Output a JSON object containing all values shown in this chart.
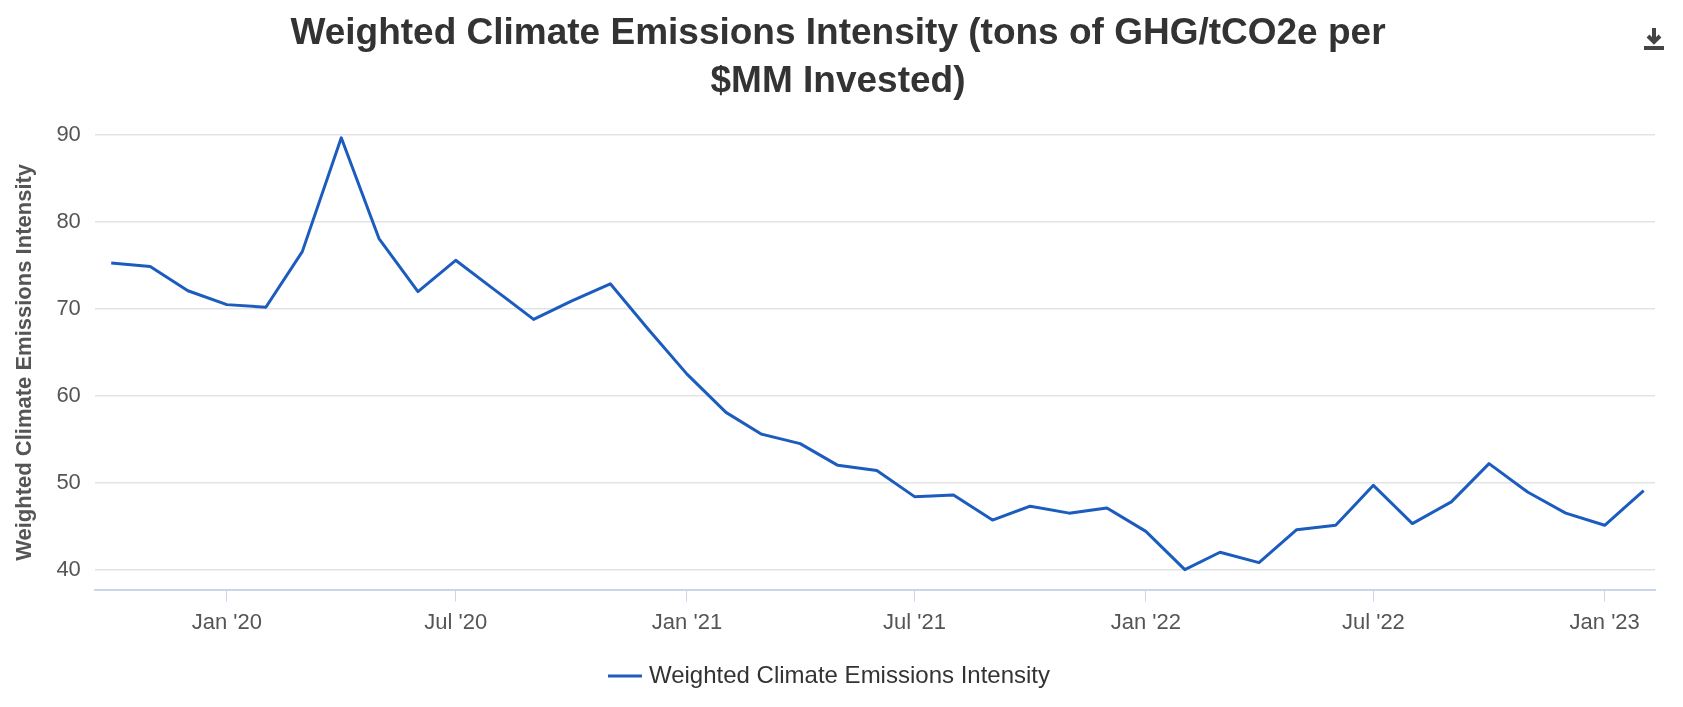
{
  "chart_data": {
    "type": "line",
    "title": "Weighted Climate Emissions Intensity (tons of GHG/tCO2e per $MM Invested)",
    "ylabel": "Weighted Climate Emissions Intensity",
    "x": [
      "2019-10",
      "2019-11",
      "2019-12",
      "2020-01",
      "2020-02",
      "2020-03",
      "2020-04",
      "2020-05",
      "2020-06",
      "2020-07",
      "2020-08",
      "2020-09",
      "2020-10",
      "2020-11",
      "2020-12",
      "2021-01",
      "2021-02",
      "2021-03",
      "2021-04",
      "2021-05",
      "2021-06",
      "2021-07",
      "2021-08",
      "2021-09",
      "2021-10",
      "2021-11",
      "2021-12",
      "2022-01",
      "2022-02",
      "2022-03",
      "2022-04",
      "2022-05",
      "2022-06",
      "2022-07",
      "2022-08",
      "2022-09",
      "2022-10",
      "2022-11",
      "2022-12",
      "2023-01",
      "2023-02"
    ],
    "series": [
      {
        "name": "Weighted Climate Emissions Intensity",
        "color": "#1c5cbf",
        "values": [
          75.3,
          74.9,
          72.1,
          70.5,
          70.2,
          76.6,
          89.7,
          78.1,
          72,
          75.6,
          72.2,
          68.8,
          70.9,
          72.9,
          67.7,
          62.5,
          58.1,
          55.6,
          54.5,
          52,
          51.4,
          48.4,
          48.6,
          45.7,
          47.3,
          46.5,
          47.1,
          44.4,
          40,
          42,
          40.8,
          44.6,
          45.1,
          49.7,
          45.3,
          47.8,
          52.2,
          48.9,
          46.5,
          45.1,
          49.1
        ]
      }
    ],
    "xlim": [
      "2019-09-18",
      "2023-02-10"
    ],
    "xticks": [
      {
        "value": "2020-01",
        "label": "Jan '20"
      },
      {
        "value": "2020-07",
        "label": "Jul '20"
      },
      {
        "value": "2021-01",
        "label": "Jan '21"
      },
      {
        "value": "2021-07",
        "label": "Jul '21"
      },
      {
        "value": "2022-01",
        "label": "Jan '22"
      },
      {
        "value": "2022-07",
        "label": "Jul '22"
      },
      {
        "value": "2023-01",
        "label": "Jan '23"
      }
    ],
    "ylim": [
      37.7,
      90
    ],
    "yticks": [
      40,
      50,
      60,
      70,
      80,
      90
    ],
    "grid": "y",
    "legend": "bottom",
    "marker": "none",
    "line_style": "solid"
  }
}
